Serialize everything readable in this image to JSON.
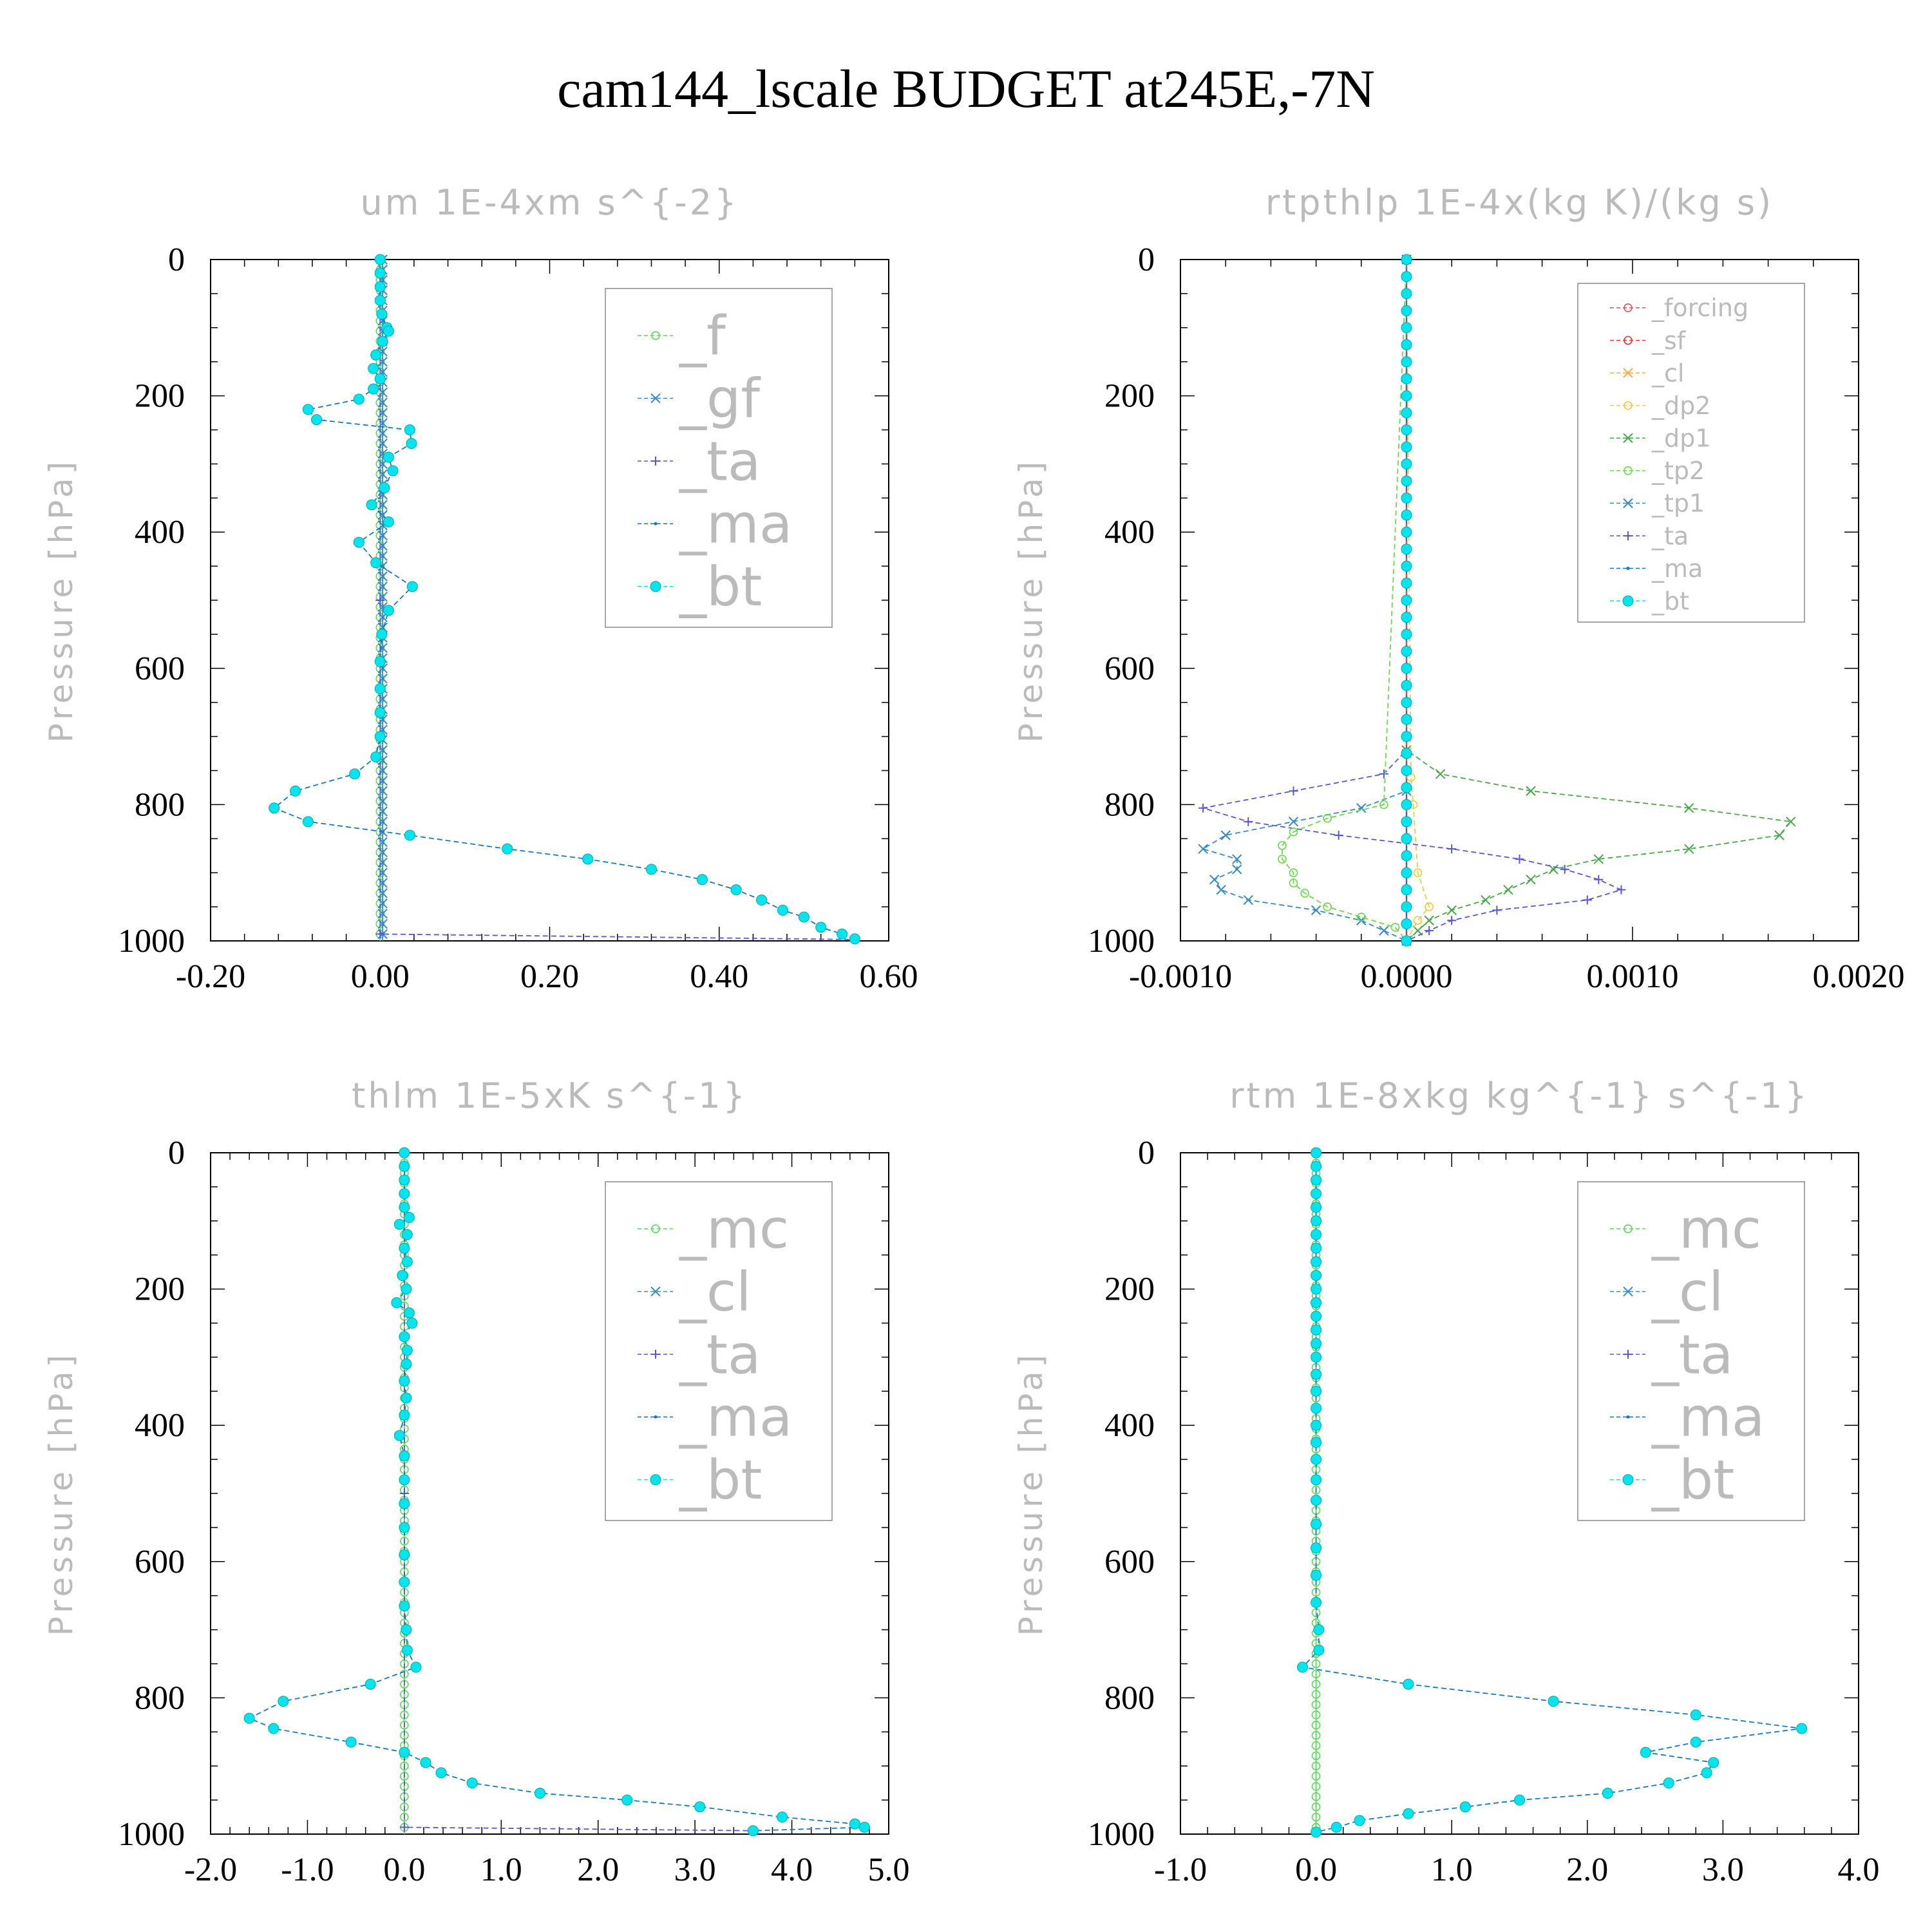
{
  "title": "cam144_lscale  BUDGET at245E,-7N",
  "colors": {
    "f": "#55dd55",
    "gf": "#3388cc",
    "ta": "#5555dd",
    "ma": "#1177cc",
    "bt": "#00e5ee",
    "mc": "#55dd55",
    "cl_blue": "#3388cc",
    "forcing": "#dd5555",
    "sf": "#ee3333",
    "cl_orange": "#ffaa33",
    "dp2": "#eecc33",
    "dp1": "#44aa44",
    "tp2": "#66dd44",
    "tp1": "#3388cc",
    "axis": "#000000",
    "subtitle": "#bbbbbb"
  },
  "chart_data": [
    {
      "id": "um",
      "type": "line",
      "title": "um  1E-4xm s^{-2}",
      "ylabel": "Pressure [hPa]",
      "xlim": [
        -0.2,
        0.6
      ],
      "ylim": [
        1000,
        0
      ],
      "xticks": [
        "-0.20",
        "0.00",
        "0.20",
        "0.40",
        "0.60"
      ],
      "yticks": [
        "0",
        "200",
        "400",
        "600",
        "800",
        "1000"
      ],
      "legend": [
        "_f",
        "_gf",
        "_ta",
        "_ma",
        "_bt"
      ],
      "series": [
        {
          "key": "f",
          "p": [
            0,
            250,
            500,
            750,
            1000
          ],
          "values": [
            0,
            0,
            0,
            0,
            0
          ]
        },
        {
          "key": "gf",
          "p": [
            0,
            250,
            500,
            750,
            1000
          ],
          "values": [
            0.003,
            0.003,
            0.003,
            0.003,
            0.003
          ]
        },
        {
          "key": "ta",
          "p": [
            0,
            500,
            990,
            998
          ],
          "values": [
            0,
            0,
            0,
            0.56
          ]
        },
        {
          "key": "bt",
          "p": [
            0,
            20,
            40,
            60,
            80,
            100,
            105,
            120,
            140,
            160,
            175,
            190,
            205,
            220,
            235,
            250,
            270,
            290,
            310,
            335,
            360,
            385,
            415,
            445,
            480,
            515,
            550,
            590,
            630,
            665,
            700,
            730,
            755,
            780,
            805,
            825,
            845,
            865,
            880,
            895,
            910,
            925,
            940,
            955,
            965,
            980,
            990,
            997
          ],
          "values": [
            0,
            0,
            0,
            0,
            0.002,
            0.008,
            0.01,
            0.003,
            -0.005,
            -0.008,
            0,
            -0.008,
            -0.025,
            -0.085,
            -0.075,
            0.035,
            0.037,
            0.01,
            0.015,
            0.005,
            -0.01,
            0.01,
            -0.025,
            -0.005,
            0.038,
            0.01,
            0.002,
            0,
            0,
            0,
            0,
            -0.005,
            -0.03,
            -0.1,
            -0.125,
            -0.085,
            0.035,
            0.15,
            0.245,
            0.32,
            0.38,
            0.42,
            0.45,
            0.475,
            0.5,
            0.52,
            0.545,
            0.56
          ]
        }
      ]
    },
    {
      "id": "rtpthlp",
      "type": "line",
      "title": "rtpthlp  1E-4x(kg K)/(kg s)",
      "ylabel": "Pressure [hPa]",
      "xlim": [
        -0.001,
        0.002
      ],
      "ylim": [
        1000,
        0
      ],
      "xticks": [
        "-0.0010",
        "0.0000",
        "0.0010",
        "0.0020"
      ],
      "yticks": [
        "0",
        "200",
        "400",
        "600",
        "800",
        "1000"
      ],
      "legend": [
        "_forcing",
        "_sf",
        "_cl",
        "_dp2",
        "_dp1",
        "_tp2",
        "_tp1",
        "_ta",
        "_ma",
        "_bt"
      ],
      "series": [
        {
          "key": "forcing",
          "p": [
            0,
            1000
          ],
          "values": [
            0,
            0
          ]
        },
        {
          "key": "dp1",
          "p": [
            0,
            720,
            755,
            780,
            805,
            825,
            845,
            865,
            880,
            895,
            910,
            925,
            940,
            955,
            970,
            985,
            1000
          ],
          "values": [
            0,
            0,
            0.00015,
            0.00055,
            0.00125,
            0.0017,
            0.00165,
            0.00125,
            0.00085,
            0.00065,
            0.00055,
            0.00045,
            0.00035,
            0.0002,
            0.0001,
            5e-05,
            0
          ]
        },
        {
          "key": "ta",
          "p": [
            0,
            720,
            755,
            780,
            805,
            825,
            845,
            865,
            880,
            895,
            910,
            925,
            940,
            955,
            970,
            985,
            1000
          ],
          "values": [
            0,
            0,
            -0.0001,
            -0.0005,
            -0.0009,
            -0.0007,
            -0.0003,
            0.0002,
            0.0005,
            0.0007,
            0.00085,
            0.00095,
            0.0008,
            0.0004,
            0.0002,
            0.0001,
            0
          ]
        },
        {
          "key": "tp1",
          "p": [
            0,
            780,
            805,
            825,
            845,
            865,
            880,
            895,
            910,
            925,
            940,
            955,
            970,
            985,
            1000
          ],
          "values": [
            0,
            0,
            -0.0002,
            -0.0005,
            -0.0008,
            -0.0009,
            -0.00075,
            -0.00075,
            -0.00085,
            -0.00082,
            -0.0007,
            -0.0004,
            -0.0002,
            -0.0001,
            0
          ]
        },
        {
          "key": "tp2",
          "p": [
            0,
            800,
            820,
            840,
            860,
            880,
            900,
            915,
            930,
            950,
            965,
            980,
            1000
          ],
          "values": [
            0,
            -0.0001,
            -0.00035,
            -0.0005,
            -0.00055,
            -0.00055,
            -0.0005,
            -0.0005,
            -0.00045,
            -0.00035,
            -0.0002,
            -5e-05,
            0
          ]
        },
        {
          "key": "dp2",
          "p": [
            0,
            760,
            800,
            900,
            950,
            970,
            1000
          ],
          "values": [
            0,
            2e-05,
            3e-05,
            5e-05,
            0.0001,
            5e-05,
            0
          ]
        },
        {
          "key": "bt",
          "p": [
            0,
            25,
            50,
            75,
            100,
            125,
            150,
            175,
            200,
            225,
            250,
            275,
            300,
            325,
            350,
            375,
            400,
            425,
            450,
            475,
            500,
            525,
            550,
            575,
            600,
            625,
            650,
            675,
            700,
            725,
            750,
            775,
            800,
            825,
            850,
            875,
            900,
            925,
            950,
            975,
            1000
          ],
          "values": [
            0,
            0,
            0,
            0,
            0,
            0,
            0,
            0,
            0,
            0,
            0,
            0,
            0,
            0,
            0,
            0,
            0,
            0,
            0,
            0,
            0,
            0,
            0,
            0,
            0,
            0,
            0,
            0,
            0,
            0,
            0,
            0,
            0,
            0,
            0,
            0,
            0,
            0,
            0,
            0,
            0
          ]
        }
      ]
    },
    {
      "id": "thlm",
      "type": "line",
      "title": "thlm  1E-5xK s^{-1}",
      "ylabel": "Pressure [hPa]",
      "xlim": [
        -2.0,
        5.0
      ],
      "ylim": [
        1000,
        0
      ],
      "xticks": [
        "-2.0",
        "-1.0",
        "0.0",
        "1.0",
        "2.0",
        "3.0",
        "4.0",
        "5.0"
      ],
      "yticks": [
        "0",
        "200",
        "400",
        "600",
        "800",
        "1000"
      ],
      "legend": [
        "_mc",
        "_cl",
        "_ta",
        "_ma",
        "_bt"
      ],
      "series": [
        {
          "key": "mc",
          "p": [
            0,
            250,
            500,
            750,
            1000
          ],
          "values": [
            0,
            0,
            0,
            0,
            0
          ]
        },
        {
          "key": "ta",
          "p": [
            0,
            500,
            990,
            995
          ],
          "values": [
            0,
            0,
            0,
            3.6
          ]
        },
        {
          "key": "bt",
          "p": [
            0,
            20,
            40,
            60,
            80,
            95,
            105,
            120,
            140,
            160,
            180,
            200,
            220,
            235,
            250,
            270,
            290,
            310,
            335,
            360,
            385,
            415,
            445,
            480,
            515,
            550,
            590,
            630,
            665,
            700,
            730,
            755,
            780,
            805,
            830,
            845,
            865,
            880,
            895,
            910,
            925,
            940,
            950,
            960,
            975,
            985,
            990,
            995
          ],
          "values": [
            0,
            0,
            0,
            0,
            0,
            0.05,
            -0.05,
            0.03,
            0,
            0.03,
            -0.02,
            0.02,
            -0.08,
            0.05,
            0.08,
            0,
            0.03,
            0.02,
            0,
            0.02,
            0,
            -0.05,
            0,
            0,
            0,
            0,
            0,
            0,
            0,
            0.02,
            0.03,
            0.12,
            -0.35,
            -1.25,
            -1.6,
            -1.35,
            -0.55,
            0,
            0.22,
            0.38,
            0.7,
            1.4,
            2.3,
            3.05,
            3.9,
            4.65,
            4.75,
            3.6
          ]
        }
      ]
    },
    {
      "id": "rtm",
      "type": "line",
      "title": "rtm  1E-8xkg kg^{-1} s^{-1}",
      "ylabel": "Pressure [hPa]",
      "xlim": [
        -1.0,
        4.0
      ],
      "ylim": [
        1000,
        0
      ],
      "xticks": [
        "-1.0",
        "0.0",
        "1.0",
        "2.0",
        "3.0",
        "4.0"
      ],
      "yticks": [
        "0",
        "200",
        "400",
        "600",
        "800",
        "1000"
      ],
      "legend": [
        "_mc",
        "_cl",
        "_ta",
        "_ma",
        "_bt"
      ],
      "series": [
        {
          "key": "mc",
          "p": [
            0,
            250,
            500,
            750,
            1000
          ],
          "values": [
            0,
            0,
            0,
            0,
            0
          ]
        },
        {
          "key": "bt",
          "p": [
            0,
            20,
            40,
            60,
            80,
            100,
            120,
            140,
            160,
            180,
            200,
            220,
            240,
            260,
            280,
            300,
            325,
            350,
            375,
            400,
            425,
            450,
            480,
            510,
            545,
            580,
            620,
            660,
            700,
            730,
            755,
            780,
            805,
            825,
            845,
            865,
            880,
            895,
            910,
            925,
            940,
            950,
            960,
            970,
            980,
            990,
            997
          ],
          "values": [
            0,
            0,
            0,
            0,
            0,
            0,
            0,
            0,
            0,
            0,
            0,
            0,
            0,
            0,
            0,
            0,
            0,
            0,
            0,
            0,
            0,
            0,
            0,
            0,
            0,
            0,
            0,
            0,
            0.02,
            0.02,
            -0.1,
            0.68,
            1.75,
            2.8,
            3.58,
            2.8,
            2.43,
            2.93,
            2.88,
            2.6,
            2.15,
            1.5,
            1.1,
            0.68,
            0.32,
            0.15,
            0
          ]
        }
      ]
    }
  ]
}
